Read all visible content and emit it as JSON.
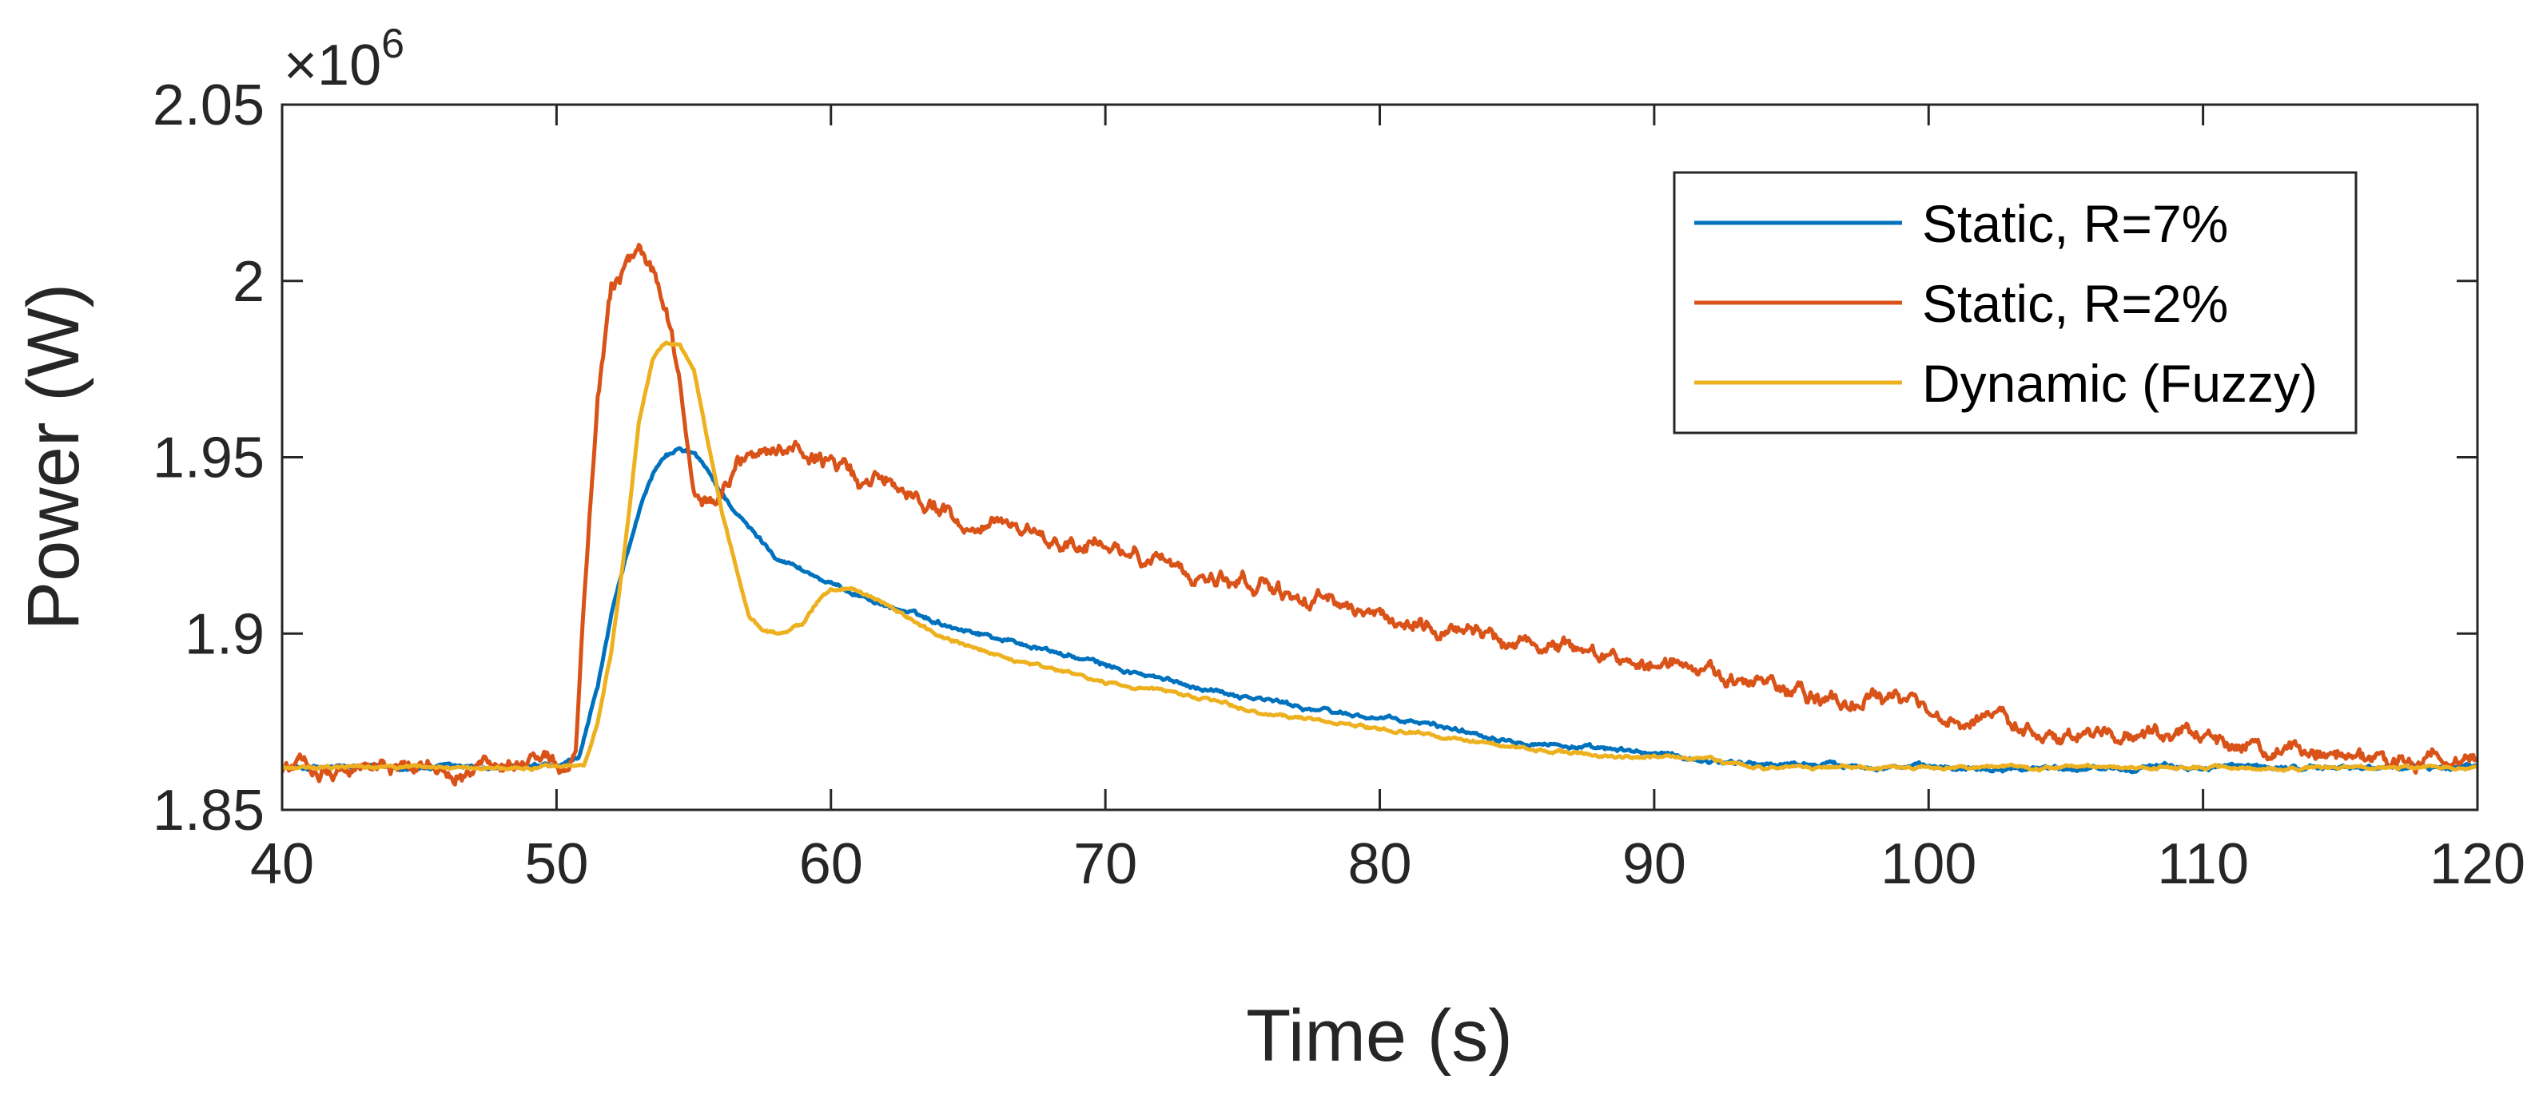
{
  "chart_data": {
    "type": "line",
    "title": "",
    "xlabel": "Time (s)",
    "ylabel": "Power (W)",
    "y_exponent_base": "×10",
    "y_exponent_power": "6",
    "xlim": [
      40,
      120
    ],
    "ylim": [
      1.85,
      2.05
    ],
    "xticks": [
      40,
      50,
      60,
      70,
      80,
      90,
      100,
      110,
      120
    ],
    "yticks": [
      1.85,
      1.9,
      1.95,
      2.0,
      2.05
    ],
    "xtick_labels": [
      "40",
      "50",
      "60",
      "70",
      "80",
      "90",
      "100",
      "110",
      "120"
    ],
    "ytick_labels": [
      "1.85",
      "1.9",
      "1.95",
      "2",
      "2.05"
    ],
    "legend_position": "top-right",
    "series": [
      {
        "name": "Static, R=7%",
        "color": "#0072BD",
        "noise": 0.0008,
        "x": [
          40,
          50,
          50.8,
          51.5,
          52,
          52.5,
          53,
          53.5,
          54,
          54.5,
          55,
          55.5,
          56,
          57,
          58,
          59,
          60,
          62,
          64,
          66,
          68,
          70,
          72,
          74,
          76,
          78,
          80,
          82,
          84,
          86,
          88,
          90,
          92,
          94,
          96,
          100,
          110,
          120
        ],
        "y": [
          1.862,
          1.862,
          1.864,
          1.885,
          1.905,
          1.92,
          1.935,
          1.945,
          1.95,
          1.952,
          1.951,
          1.946,
          1.94,
          1.93,
          1.922,
          1.918,
          1.914,
          1.908,
          1.903,
          1.899,
          1.895,
          1.891,
          1.887,
          1.884,
          1.881,
          1.878,
          1.876,
          1.874,
          1.871,
          1.869,
          1.867,
          1.866,
          1.864,
          1.863,
          1.863,
          1.862,
          1.862,
          1.862
        ]
      },
      {
        "name": "Static, R=2%",
        "color": "#D95319",
        "noise": 0.0028,
        "x": [
          40,
          50,
          50.7,
          51,
          51.5,
          52,
          52.5,
          53,
          53.5,
          54,
          54.5,
          55,
          55.5,
          56,
          56.5,
          57,
          57.5,
          58,
          59,
          60,
          61,
          62,
          63,
          64,
          65,
          66,
          67,
          68,
          70,
          72,
          74,
          76,
          78,
          80,
          82,
          84,
          86,
          88,
          90,
          92,
          94,
          96,
          98,
          100,
          102,
          104,
          106,
          108,
          110,
          112,
          114,
          116,
          118,
          120
        ],
        "y": [
          1.862,
          1.862,
          1.864,
          1.91,
          1.965,
          1.995,
          2.003,
          2.007,
          2.003,
          1.99,
          1.97,
          1.945,
          1.937,
          1.94,
          1.945,
          1.95,
          1.952,
          1.954,
          1.952,
          1.948,
          1.943,
          1.945,
          1.94,
          1.935,
          1.93,
          1.932,
          1.928,
          1.925,
          1.925,
          1.92,
          1.916,
          1.912,
          1.909,
          1.904,
          1.903,
          1.9,
          1.897,
          1.895,
          1.893,
          1.889,
          1.886,
          1.882,
          1.881,
          1.878,
          1.876,
          1.873,
          1.872,
          1.871,
          1.87,
          1.868,
          1.866,
          1.865,
          1.864,
          1.863
        ]
      },
      {
        "name": "Dynamic (Fuzzy)",
        "color": "#EDB120",
        "noise": 0.0006,
        "x": [
          40,
          50,
          51,
          51.5,
          52,
          52.5,
          53,
          53.5,
          54,
          54.5,
          55,
          55.5,
          56,
          56.5,
          57,
          57.5,
          58,
          58.5,
          59,
          59.5,
          60,
          60.5,
          61,
          62,
          64,
          66,
          68,
          70,
          72,
          74,
          76,
          78,
          80,
          82,
          84,
          86,
          88,
          90,
          92,
          94,
          96,
          100,
          110,
          120
        ],
        "y": [
          1.862,
          1.862,
          1.863,
          1.875,
          1.895,
          1.925,
          1.96,
          1.978,
          1.983,
          1.982,
          1.975,
          1.955,
          1.935,
          1.92,
          1.905,
          1.901,
          1.9,
          1.901,
          1.903,
          1.909,
          1.913,
          1.913,
          1.912,
          1.908,
          1.899,
          1.894,
          1.89,
          1.886,
          1.884,
          1.881,
          1.877,
          1.875,
          1.873,
          1.871,
          1.869,
          1.867,
          1.865,
          1.865,
          1.864,
          1.862,
          1.862,
          1.862,
          1.862,
          1.862
        ]
      }
    ]
  }
}
